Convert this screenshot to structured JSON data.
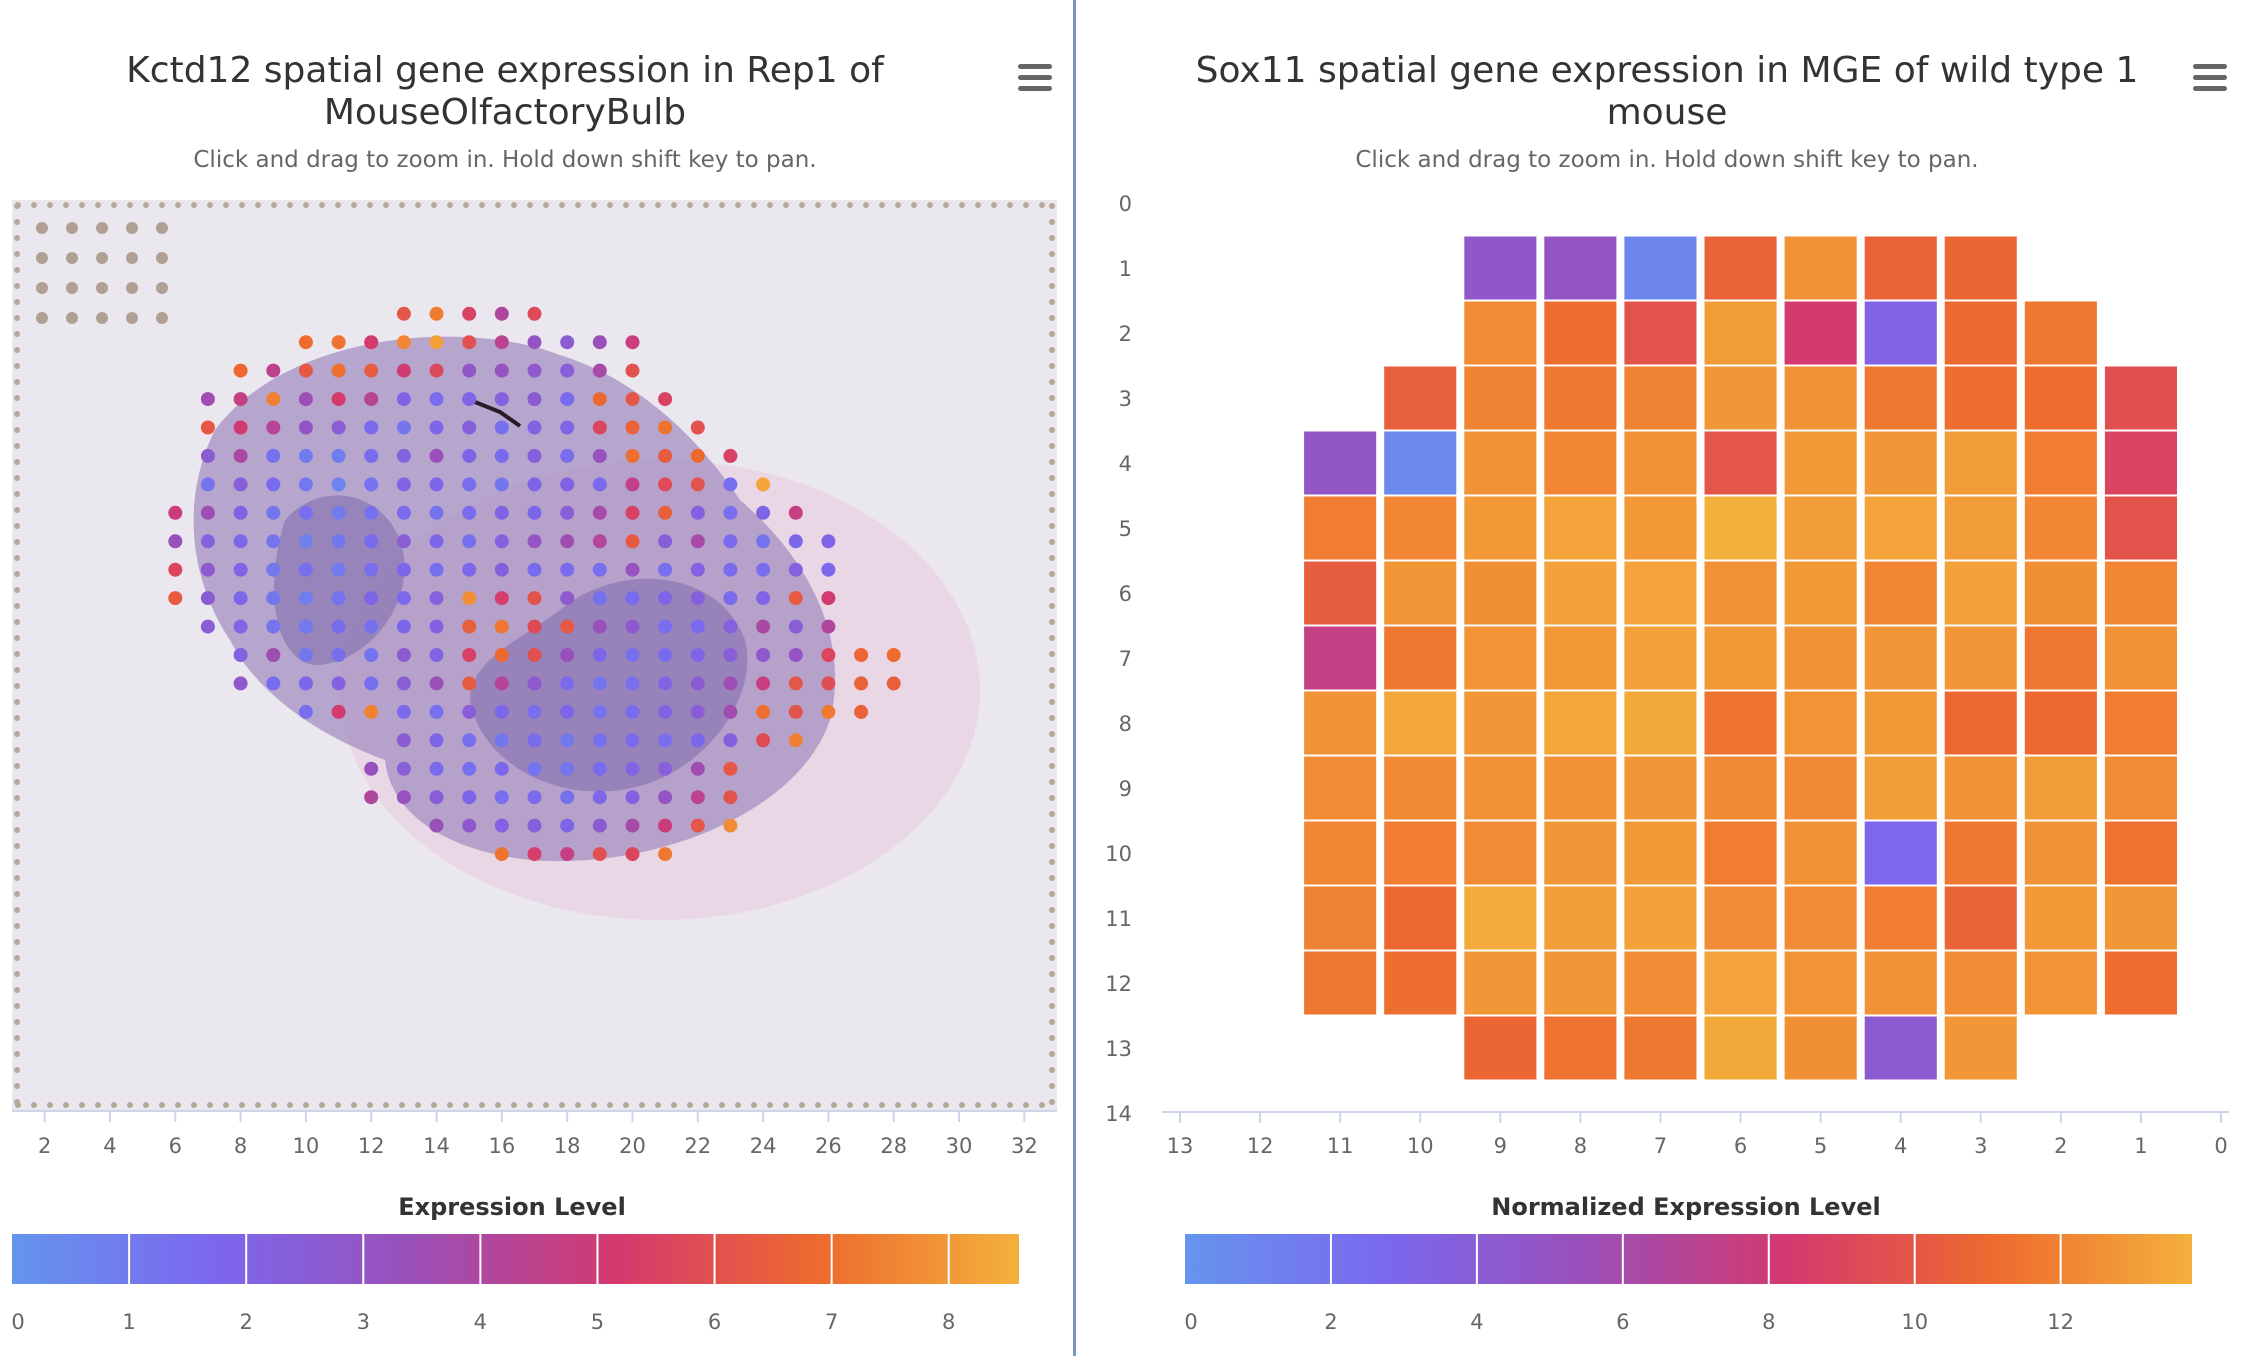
{
  "left_panel": {
    "title": "Kctd12 spatial gene expression in Rep1 of MouseOlfactoryBulb",
    "subtitle": "Click and drag to zoom in. Hold down shift key to pan.",
    "menu_icon": "hamburger-menu-icon",
    "legend_title": "Expression Level"
  },
  "right_panel": {
    "title": "Sox11 spatial gene expression in MGE of wild type 1 mouse",
    "subtitle": "Click and drag to zoom in. Hold down shift key to pan.",
    "menu_icon": "hamburger-menu-icon",
    "legend_title": "Normalized Expression Level"
  },
  "colors": {
    "low": "#6495ed",
    "mid_low": "#7b68ee",
    "mid": "#9b4fb8",
    "mid_high": "#d4396f",
    "high": "#ee6a2e",
    "top": "#f4b03c"
  },
  "chart_data": [
    {
      "type": "scatter",
      "name": "kctd12",
      "title": "Kctd12 spatial gene expression in Rep1 of MouseOlfactoryBulb",
      "subtitle": "Click and drag to zoom in. Hold down shift key to pan.",
      "background": "tissue section histology image",
      "xlim": [
        1,
        33
      ],
      "ylim": [
        1,
        33
      ],
      "x_ticks": [
        "2",
        "4",
        "6",
        "8",
        "10",
        "12",
        "14",
        "16",
        "18",
        "20",
        "22",
        "24",
        "26",
        "28",
        "30",
        "32"
      ],
      "legend": {
        "title": "Expression Level",
        "ticks": [
          "0",
          "1",
          "2",
          "3",
          "4",
          "5",
          "6",
          "7",
          "8"
        ],
        "range": [
          0,
          8.6
        ],
        "position": "bottom"
      },
      "spot_rows": [
        {
          "y": 5,
          "x_start": 13,
          "values": [
            6.2,
            7.3,
            5.5,
            4.1,
            5.8
          ]
        },
        {
          "y": 6,
          "x_start": 10,
          "values": [
            6.9,
            7.1,
            5.2,
            7.6,
            8.2,
            6.0,
            4.4,
            3.1,
            2.6,
            3.4,
            4.8
          ]
        },
        {
          "y": 7,
          "x_start": 8,
          "values": [
            6.8,
            4.5,
            6.3,
            7.0,
            6.4,
            5.1,
            5.7,
            2.9,
            3.2,
            2.8,
            2.4,
            3.8,
            6.0
          ]
        },
        {
          "y": 8,
          "x_start": 7,
          "values": [
            3.6,
            4.7,
            7.4,
            3.5,
            5.2,
            4.3,
            2.0,
            1.5,
            1.9,
            2.2,
            2.6,
            1.6,
            6.8,
            6.2,
            5.5
          ]
        },
        {
          "y": 9,
          "x_start": 7,
          "values": [
            6.3,
            5.1,
            4.2,
            3.0,
            2.5,
            1.7,
            1.2,
            1.8,
            2.3,
            1.4,
            2.1,
            1.9,
            5.6,
            6.6,
            7.1,
            6.0
          ]
        },
        {
          "y": 10,
          "x_start": 7,
          "values": [
            2.6,
            3.9,
            1.4,
            1.0,
            0.9,
            1.6,
            2.2,
            3.4,
            1.9,
            1.7,
            2.3,
            1.5,
            3.2,
            7.0,
            6.4,
            6.8,
            5.4
          ]
        },
        {
          "y": 11,
          "x_start": 7,
          "values": [
            1.3,
            2.4,
            1.6,
            1.1,
            0.7,
            1.3,
            2.0,
            1.8,
            1.5,
            1.2,
            1.9,
            2.1,
            1.7,
            4.6,
            5.8,
            6.1,
            1.4,
            8.3
          ]
        },
        {
          "y": 12,
          "x_start": 6,
          "values": [
            4.9,
            3.5,
            2.1,
            1.2,
            1.5,
            1.0,
            1.4,
            1.7,
            1.3,
            1.6,
            2.0,
            1.8,
            2.4,
            3.8,
            5.4,
            6.5,
            2.1,
            1.5,
            1.9,
            4.7
          ]
        },
        {
          "y": 13,
          "x_start": 6,
          "values": [
            3.4,
            2.2,
            1.8,
            1.3,
            0.8,
            1.2,
            1.6,
            2.5,
            1.9,
            1.4,
            2.2,
            3.1,
            3.6,
            4.2,
            6.3,
            2.4,
            3.8,
            1.7,
            1.3,
            1.8,
            2.0
          ]
        },
        {
          "y": 14,
          "x_start": 6,
          "values": [
            5.6,
            2.7,
            1.9,
            1.1,
            1.4,
            1.0,
            1.5,
            1.8,
            1.4,
            1.8,
            2.3,
            1.6,
            1.7,
            1.5,
            3.2,
            1.4,
            2.1,
            1.7,
            1.5,
            2.2,
            1.8
          ]
        },
        {
          "y": 15,
          "x_start": 6,
          "values": [
            6.4,
            2.6,
            1.8,
            1.2,
            0.9,
            1.3,
            1.9,
            1.7,
            2.2,
            7.8,
            5.3,
            6.1,
            2.7,
            1.4,
            1.6,
            1.9,
            2.3,
            1.6,
            2.0,
            6.4,
            5.1
          ]
        },
        {
          "y": 16,
          "x_start": 7,
          "values": [
            2.5,
            2.0,
            1.3,
            1.1,
            1.6,
            1.4,
            1.8,
            2.1,
            6.5,
            7.2,
            5.8,
            6.3,
            3.4,
            2.8,
            1.5,
            1.7,
            2.2,
            3.9,
            2.5,
            4.1
          ]
        },
        {
          "y": 17,
          "x_start": 8,
          "values": [
            2.1,
            3.6,
            1.2,
            1.5,
            1.3,
            2.7,
            2.0,
            5.4,
            6.8,
            6.0,
            3.3,
            1.8,
            1.4,
            1.6,
            1.9,
            2.4,
            2.8,
            3.1,
            5.6,
            6.7,
            6.9
          ]
        },
        {
          "y": 18,
          "x_start": 8,
          "values": [
            2.8,
            1.6,
            1.8,
            2.2,
            1.4,
            2.5,
            3.4,
            6.4,
            4.2,
            2.8,
            1.7,
            1.3,
            1.5,
            2.0,
            2.6,
            3.5,
            4.8,
            6.2,
            5.9,
            6.6,
            6.5
          ]
        },
        {
          "y": 19,
          "x_start": 10,
          "values": [
            1.5,
            5.2,
            7.5,
            1.7,
            1.4,
            2.4,
            1.8,
            1.5,
            1.9,
            1.3,
            1.6,
            2.0,
            2.5,
            3.6,
            7.0,
            6.1,
            7.3,
            6.6
          ]
        },
        {
          "y": 20,
          "x_start": 13,
          "values": [
            2.6,
            1.9,
            1.4,
            1.2,
            1.6,
            1.1,
            1.4,
            1.7,
            1.5,
            1.8,
            2.3,
            5.8,
            7.4
          ]
        },
        {
          "y": 21,
          "x_start": 12,
          "values": [
            3.3,
            2.4,
            1.6,
            1.4,
            1.8,
            1.3,
            1.2,
            1.6,
            2.0,
            2.4,
            3.6,
            6.3
          ]
        },
        {
          "y": 22,
          "x_start": 12,
          "values": [
            4.1,
            3.2,
            2.5,
            1.9,
            1.5,
            1.7,
            1.4,
            1.8,
            2.2,
            3.1,
            4.4,
            6.1
          ]
        },
        {
          "y": 23,
          "x_start": 14,
          "values": [
            3.4,
            2.8,
            2.1,
            2.3,
            1.9,
            2.6,
            3.8,
            4.9,
            6.2,
            7.7
          ]
        },
        {
          "y": 24,
          "x_start": 16,
          "values": [
            7.1,
            5.3,
            4.7,
            6.0,
            5.6,
            7.2
          ]
        }
      ]
    },
    {
      "type": "heatmap",
      "name": "sox11",
      "title": "Sox11 spatial gene expression in MGE of wild type 1 mouse",
      "subtitle": "Click and drag to zoom in. Hold down shift key to pan.",
      "x_reversed": true,
      "xlim": [
        0,
        13
      ],
      "ylim": [
        0,
        14
      ],
      "x_ticks": [
        "13",
        "12",
        "11",
        "10",
        "9",
        "8",
        "7",
        "6",
        "5",
        "4",
        "3",
        "2",
        "1",
        "0"
      ],
      "y_ticks": [
        "0",
        "1",
        "2",
        "3",
        "4",
        "5",
        "6",
        "7",
        "8",
        "9",
        "10",
        "11",
        "12",
        "13",
        "14"
      ],
      "legend": {
        "title": "Normalized Expression Level",
        "ticks": [
          "0",
          "2",
          "4",
          "6",
          "8",
          "10",
          "12"
        ],
        "range": [
          0,
          13.8
        ],
        "position": "bottom"
      },
      "columns": [
        {
          "x": 11,
          "y_start": 4,
          "values": [
            4.8,
            11.8,
            10.3,
            7.5,
            12.6,
            12.4,
            12.2,
            12.0,
            11.5
          ]
        },
        {
          "x": 10,
          "y_start": 3,
          "values": [
            10.4,
            0.8,
            12.2,
            12.8,
            11.6,
            13.4,
            12.3,
            11.8,
            10.9,
            11.2
          ]
        },
        {
          "x": 9,
          "y_start": 1,
          "values": [
            4.6,
            12.4,
            12.0,
            12.6,
            12.9,
            12.5,
            12.7,
            12.8,
            12.6,
            12.4,
            13.6,
            12.8,
            10.8
          ]
        },
        {
          "x": 8,
          "y_start": 1,
          "values": [
            4.9,
            11.2,
            11.6,
            12.2,
            13.3,
            13.2,
            12.9,
            13.4,
            12.6,
            12.8,
            13.1,
            12.8,
            11.4
          ]
        },
        {
          "x": 7,
          "y_start": 1,
          "values": [
            0.9,
            9.8,
            12.0,
            12.6,
            12.9,
            13.3,
            13.2,
            13.5,
            12.8,
            12.9,
            13.2,
            12.4,
            11.6
          ]
        },
        {
          "x": 6,
          "y_start": 1,
          "values": [
            10.6,
            13.0,
            12.8,
            9.9,
            13.8,
            12.6,
            12.9,
            11.4,
            12.3,
            11.8,
            12.4,
            13.3,
            13.5
          ]
        },
        {
          "x": 5,
          "y_start": 1,
          "values": [
            12.6,
            8.3,
            12.6,
            12.9,
            13.1,
            12.9,
            12.6,
            12.7,
            12.3,
            12.6,
            12.4,
            12.7,
            12.5
          ]
        },
        {
          "x": 4,
          "y_start": 1,
          "values": [
            10.6,
            3.3,
            11.6,
            12.8,
            13.3,
            12.1,
            12.8,
            12.9,
            13.1,
            2.8,
            11.8,
            12.6,
            4.2
          ]
        },
        {
          "x": 3,
          "y_start": 1,
          "values": [
            10.8,
            11.0,
            11.2,
            13.0,
            13.0,
            13.2,
            12.8,
            10.9,
            12.6,
            11.6,
            10.7,
            12.4,
            12.8
          ]
        },
        {
          "x": 2,
          "y_start": 2,
          "values": [
            11.6,
            11.1,
            11.8,
            12.2,
            12.5,
            11.5,
            11.0,
            13.0,
            12.6,
            12.9,
            12.7
          ]
        },
        {
          "x": 1,
          "y_start": 3,
          "values": [
            9.6,
            8.9,
            9.8,
            12.2,
            12.6,
            11.8,
            12.4,
            11.4,
            12.8,
            11.1
          ]
        }
      ]
    }
  ]
}
